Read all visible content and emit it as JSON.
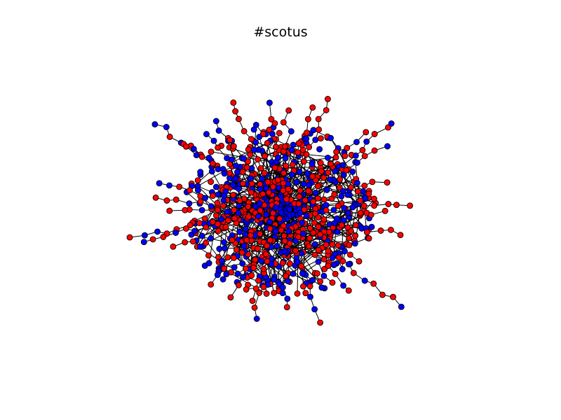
{
  "title": "#scotus",
  "graph": {
    "type": "network",
    "node_colors": {
      "red": "#ff0000",
      "blue": "#0000ff"
    },
    "edge_color": "#000000",
    "node_outline_color": "#000000",
    "axes_visible": false
  }
}
